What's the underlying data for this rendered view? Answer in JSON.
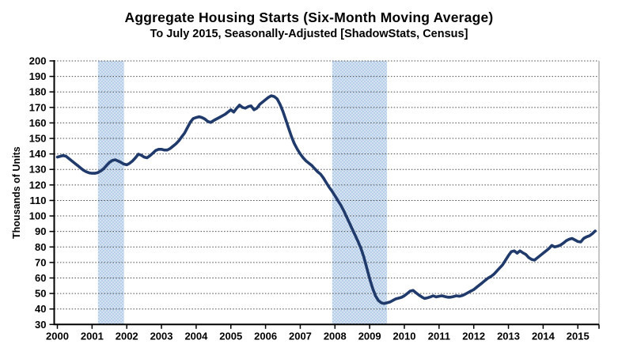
{
  "page": {
    "background": "#ffffff"
  },
  "chart_data": {
    "type": "line",
    "title": "Aggregate Housing Starts (Six-Month Moving Average)",
    "subtitle": "To July 2015, Seasonally-Adjusted [ShadowStats, Census]",
    "ylabel": "Thousands of Units",
    "xlabel": "",
    "ylim": [
      30,
      200
    ],
    "ytick_step": 10,
    "y_tick_labels": [
      "200",
      "190",
      "180",
      "170",
      "160",
      "150",
      "140",
      "130",
      "120",
      "110",
      "100",
      "90",
      "80",
      "70",
      "60",
      "50",
      "40",
      "30"
    ],
    "x_tick_labels": [
      "2000",
      "2001",
      "2002",
      "2003",
      "2004",
      "2005",
      "2006",
      "2007",
      "2008",
      "2009",
      "2010",
      "2011",
      "2012",
      "2013",
      "2014",
      "2015"
    ],
    "grid_style": "dotted",
    "legend_position": "none",
    "series": [
      {
        "name": "Aggregate Housing Starts (6-Month Moving Average), Thousands of Units",
        "start_month": "2000-01",
        "end_month": "2015-07",
        "values": [
          138,
          138.5,
          139,
          138.5,
          137,
          135.5,
          134,
          132.5,
          131,
          129.5,
          128.5,
          127.8,
          127.5,
          127.5,
          128,
          129,
          130.5,
          132.5,
          134.5,
          135.8,
          136.2,
          135.5,
          134.5,
          133.5,
          133,
          134,
          135.5,
          137.5,
          139.8,
          139.2,
          138,
          137.5,
          138.8,
          140.5,
          142.2,
          143,
          143,
          142.5,
          142.5,
          143.5,
          145,
          146.5,
          148.5,
          151,
          153.5,
          157,
          160.5,
          162.8,
          163.5,
          164,
          163.5,
          162.5,
          161,
          160.3,
          161.5,
          162.5,
          163.5,
          164.5,
          165.5,
          167,
          168.5,
          167,
          169.5,
          171.5,
          170,
          169.5,
          170.5,
          171,
          168.5,
          169.5,
          172,
          173.5,
          175,
          176.5,
          177.5,
          177,
          175.5,
          172,
          167.5,
          162,
          156.5,
          151,
          146.5,
          143,
          140,
          137.5,
          135.5,
          134,
          132.5,
          130.5,
          128.5,
          127,
          124.5,
          121.5,
          118.5,
          116,
          113,
          110,
          107,
          103.5,
          99.5,
          95.5,
          91.5,
          87.5,
          83.5,
          79,
          73.5,
          66.5,
          59.5,
          53.5,
          48.5,
          45.5,
          44,
          43.5,
          44,
          44.5,
          45.5,
          46.5,
          47,
          47.5,
          48.5,
          50,
          51.5,
          52,
          50.5,
          49,
          47.8,
          46.8,
          47.2,
          47.8,
          48.5,
          47.8,
          48.2,
          48.5,
          48,
          47.6,
          47.6,
          48,
          48.5,
          48.2,
          48.6,
          49.5,
          50.5,
          51.5,
          52.5,
          54,
          55.5,
          57,
          58.5,
          60,
          61,
          62.5,
          64.5,
          66.5,
          68.5,
          71.5,
          74.5,
          77,
          77.5,
          76,
          77.5,
          76.2,
          75.2,
          73.2,
          72,
          71.5,
          73,
          74.5,
          76,
          77.5,
          79,
          81,
          80,
          80.5,
          81.2,
          82.5,
          84,
          85,
          85.5,
          84.5,
          83.5,
          83.2,
          85.5,
          86.5,
          87.2,
          88.5,
          90.3
        ]
      }
    ],
    "recession_bands": [
      {
        "from_year": 2001.17,
        "to_year": 2001.92
      },
      {
        "from_year": 2007.92,
        "to_year": 2009.5
      }
    ],
    "colors": {
      "line": "#1f3a6b",
      "band": "#b7cfe9",
      "band_dot": "#e9f1fa",
      "grid": "#4a4a4a",
      "axis": "#000000",
      "right_border": "#8c8c8c",
      "text": "#000000"
    }
  }
}
